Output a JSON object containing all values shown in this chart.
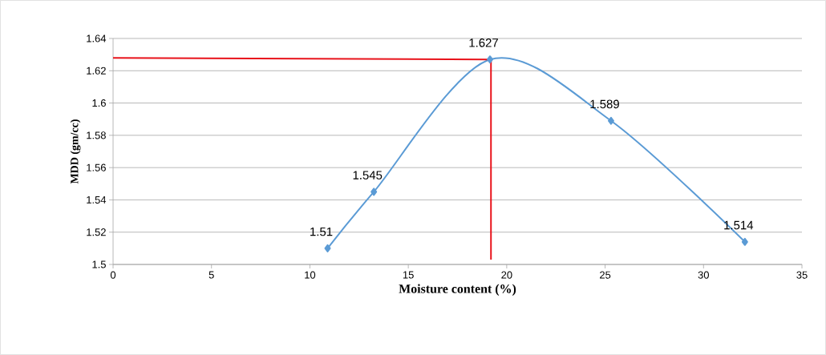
{
  "chart_data": {
    "type": "line",
    "xlabel": "Moisture content (%)",
    "ylabel": "MDD (gm/cc)",
    "xlim": [
      0,
      35
    ],
    "xticks": [
      0,
      5,
      10,
      15,
      20,
      25,
      30,
      35
    ],
    "ylim": [
      1.5,
      1.64
    ],
    "yticks": [
      1.5,
      1.52,
      1.54,
      1.56,
      1.58,
      1.6,
      1.62,
      1.64
    ],
    "grid": "y",
    "line_style": "solid",
    "series": [
      {
        "color": "#5b9bd5",
        "marker": "diamond",
        "data_labels": true,
        "x": [
          10.9,
          13.25,
          19.15,
          25.3,
          32.1
        ],
        "values": [
          1.51,
          1.545,
          1.627,
          1.589,
          1.514
        ]
      },
      {
        "color": "#e8131b",
        "marker": "none",
        "x": [
          0,
          19.2
        ],
        "values": [
          1.628,
          1.627
        ]
      },
      {
        "color": "#e8131b",
        "marker": "none",
        "x": [
          19.2,
          19.2
        ],
        "values": [
          1.627,
          1.503
        ]
      }
    ]
  }
}
